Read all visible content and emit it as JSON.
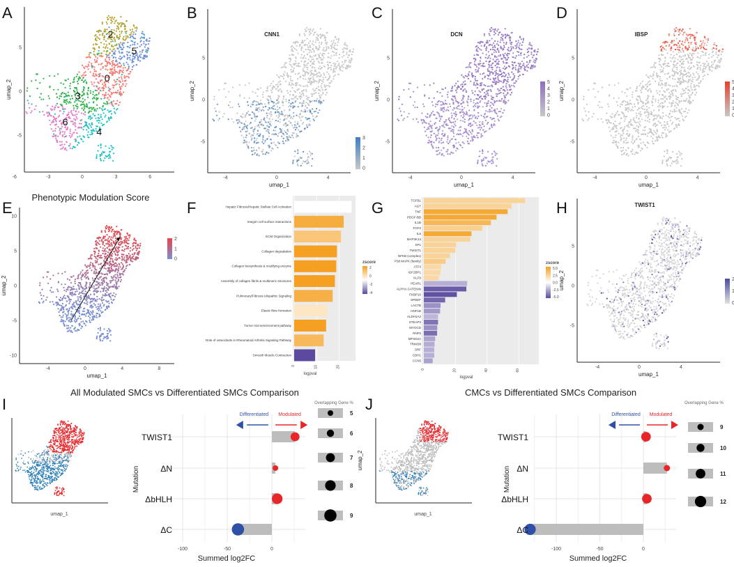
{
  "panels": {
    "A": "A",
    "B": "B",
    "C": "C",
    "D": "D",
    "E": "E",
    "F": "F",
    "G": "G",
    "H": "H",
    "I": "I",
    "J": "J"
  },
  "umap": {
    "xlabel": "umap_1",
    "ylabel": "umap_2"
  },
  "panel_a": {
    "clusters": [
      {
        "label": "0",
        "color": "#F8766D",
        "center": [
          2.2,
          1.5
        ]
      },
      {
        "label": "2",
        "color": "#B5A22C",
        "center": [
          2.5,
          6.5
        ]
      },
      {
        "label": "5",
        "color": "#6B8FD6",
        "center": [
          4.6,
          4.6
        ]
      },
      {
        "label": "3",
        "color": "#2DB34A",
        "center": [
          -0.4,
          -0.5
        ]
      },
      {
        "label": "6",
        "color": "#E178C5",
        "center": [
          -1.5,
          -3.5
        ]
      },
      {
        "label": "4",
        "color": "#1FBFC4",
        "center": [
          1.5,
          -4.6
        ]
      }
    ],
    "xticks": [
      "-6",
      "-3",
      "0",
      "3",
      "6"
    ],
    "yticks": [
      "5",
      "0",
      "-5"
    ]
  },
  "panel_b": {
    "title": "CNN1",
    "legend": [
      "3",
      "2",
      "1",
      "0"
    ],
    "color": "#3B7EC4",
    "xticks": [
      "-4",
      "0",
      "4"
    ],
    "yticks": [
      "5",
      "0",
      "-5"
    ]
  },
  "panel_c": {
    "title": "DCN",
    "legend": [
      "5",
      "4",
      "3",
      "2",
      "1",
      "0"
    ],
    "color": "#8E6FC0",
    "xticks": [
      "-4",
      "0",
      "4"
    ],
    "yticks": [
      "5",
      "0",
      "-5"
    ]
  },
  "panel_d": {
    "title": "IBSP",
    "legend": [
      "5",
      "4",
      "3",
      "2",
      "1",
      "0"
    ],
    "color": "#E8412C",
    "xticks": [
      "-4",
      "0",
      "4"
    ],
    "yticks": [
      "5",
      "0",
      "-5"
    ]
  },
  "panel_e": {
    "title": "Phenotypic Modulation Score",
    "legend": [
      "2",
      "1",
      "0"
    ],
    "low_color": "#7B8FD0",
    "high_color": "#E8454A",
    "xticks": [
      "-4",
      "0",
      "4",
      "8"
    ],
    "yticks": [
      "10",
      "5",
      "0",
      "-5",
      "-10"
    ]
  },
  "panel_h": {
    "title": "TWIST1",
    "legend": [
      "2",
      "1",
      "0"
    ],
    "color": "#4B4BA0",
    "xticks": [
      "-4",
      "0",
      "4"
    ],
    "yticks": [
      "5",
      "0",
      "-5"
    ]
  },
  "chart_data": [
    {
      "panel": "F",
      "type": "bar",
      "orientation": "horizontal",
      "xlabel": "logpval",
      "xticks": [
        "0",
        "10",
        "20"
      ],
      "legend_title": "zscore",
      "legend_ticks": [
        "2",
        "0",
        "-2",
        "-4"
      ],
      "categories": [
        "Hepatic Fibrosis/Hepatic Stellate Cell Activation",
        "Integrin cell surface interactions",
        "ECM Organization",
        "Collagen degradation",
        "Collagen biosynthesis & modifying enzyme",
        "Assembly of collagen fibrils & multimeric structures",
        "Pulmonary/Fibrosis Idiopathic Signaling",
        "Elastic fibre formation",
        "Tumor microenvironment pathway",
        "Role of osteoclasts in Rheumatoid Arthritis Signaling Pathway",
        "Smooth Muscle Contraction"
      ],
      "values": [
        25.5,
        22.0,
        20.8,
        19.0,
        18.7,
        18.1,
        17.1,
        14.7,
        14.2,
        13.1,
        9.3
      ],
      "zscore": [
        0,
        2.6,
        1.8,
        3,
        3,
        3,
        2.5,
        0.8,
        3,
        2.2,
        -3.5
      ]
    },
    {
      "panel": "G",
      "type": "bar",
      "orientation": "horizontal",
      "xlabel": "logpval",
      "xticks": [
        "0",
        "20",
        "40",
        "60"
      ],
      "legend_title": "zscore",
      "legend_ticks": [
        "5.0",
        "2.5",
        "0.0",
        "-2.5",
        "-5.0"
      ],
      "categories": [
        "TGFB1",
        "AGT",
        "TNF",
        "PDGF-BB",
        "IL1B",
        "FGF2",
        "IL6",
        "MAP3K14",
        "SP1",
        "TWIST1",
        "NFKB (complex)",
        "P38 MAPK (family)",
        "ATF4",
        "IGF2BP1",
        "KLF6",
        "PEAR1",
        "ALPHA CATENIN",
        "FKBP10",
        "SPDEF",
        "LACTB",
        "HNF1B",
        "ALDH1A2",
        "STEAP3",
        "MYOCD",
        "RNF5",
        "MFSD2A",
        "TRIM38",
        "SRF",
        "CDH1",
        "CCN5"
      ],
      "values": [
        64,
        55.4,
        53,
        46,
        42.4,
        36.9,
        30.1,
        29.3,
        20.4,
        20,
        16.5,
        13.8,
        11,
        10.6,
        9.4,
        27.4,
        26.9,
        20.9,
        13.5,
        10.6,
        10.3,
        9,
        9,
        8.5,
        8.4,
        7.2,
        6.8,
        6.6,
        6.6,
        5.6
      ],
      "zscore": [
        2.3,
        2.3,
        4.5,
        4.5,
        3.8,
        2.5,
        4.5,
        2.3,
        2.3,
        2.3,
        2.3,
        2.8,
        2,
        2,
        2,
        -2.2,
        -4.5,
        -4.8,
        -4.2,
        -3,
        -2.8,
        -2,
        -3.8,
        -3,
        -4,
        -2.5,
        -2.3,
        -2.2,
        -2.2,
        -2.6
      ]
    },
    {
      "panel": "I",
      "type": "lollipop",
      "title": "All Modulated SMCs vs Differentiated SMCs Comparison",
      "xlabel": "Summed log2FC",
      "ylabel": "Mutation",
      "xticks": [
        "-100",
        "-50",
        "0"
      ],
      "categories": [
        "TWIST1",
        "ΔN",
        "ΔbHLH",
        "ΔC"
      ],
      "values": [
        26,
        4,
        6,
        -38
      ],
      "overlap_pct": [
        7,
        5,
        8,
        9
      ],
      "size_legend_title": "Overlapping Gene %",
      "size_legend": [
        "5",
        "6",
        "7",
        "8",
        "9"
      ],
      "arrow_left": "Differentiated",
      "arrow_right": "Modulated"
    },
    {
      "panel": "J",
      "type": "lollipop",
      "title": "CMCs vs Differentiated SMCs Comparison",
      "xlabel": "Summed log2FC",
      "ylabel": "Mutation",
      "xticks": [
        "-100",
        "-50",
        "0"
      ],
      "categories": [
        "TWIST1",
        "ΔN",
        "ΔbHLH",
        "ΔC"
      ],
      "values": [
        3,
        27,
        4,
        -130
      ],
      "overlap_pct": [
        11,
        9,
        11,
        12
      ],
      "size_legend_title": "Overlapping Gene %",
      "size_legend": [
        "9",
        "10",
        "11",
        "12"
      ],
      "arrow_left": "Differentiated",
      "arrow_right": "Modulated"
    }
  ],
  "colors": {
    "up": "#E8262A",
    "down": "#3050A8",
    "grey": "#BDBDBD",
    "zneg": "#5B4A9F",
    "zpos": "#F5A020",
    "panel_bg": "#EBEBEB"
  }
}
